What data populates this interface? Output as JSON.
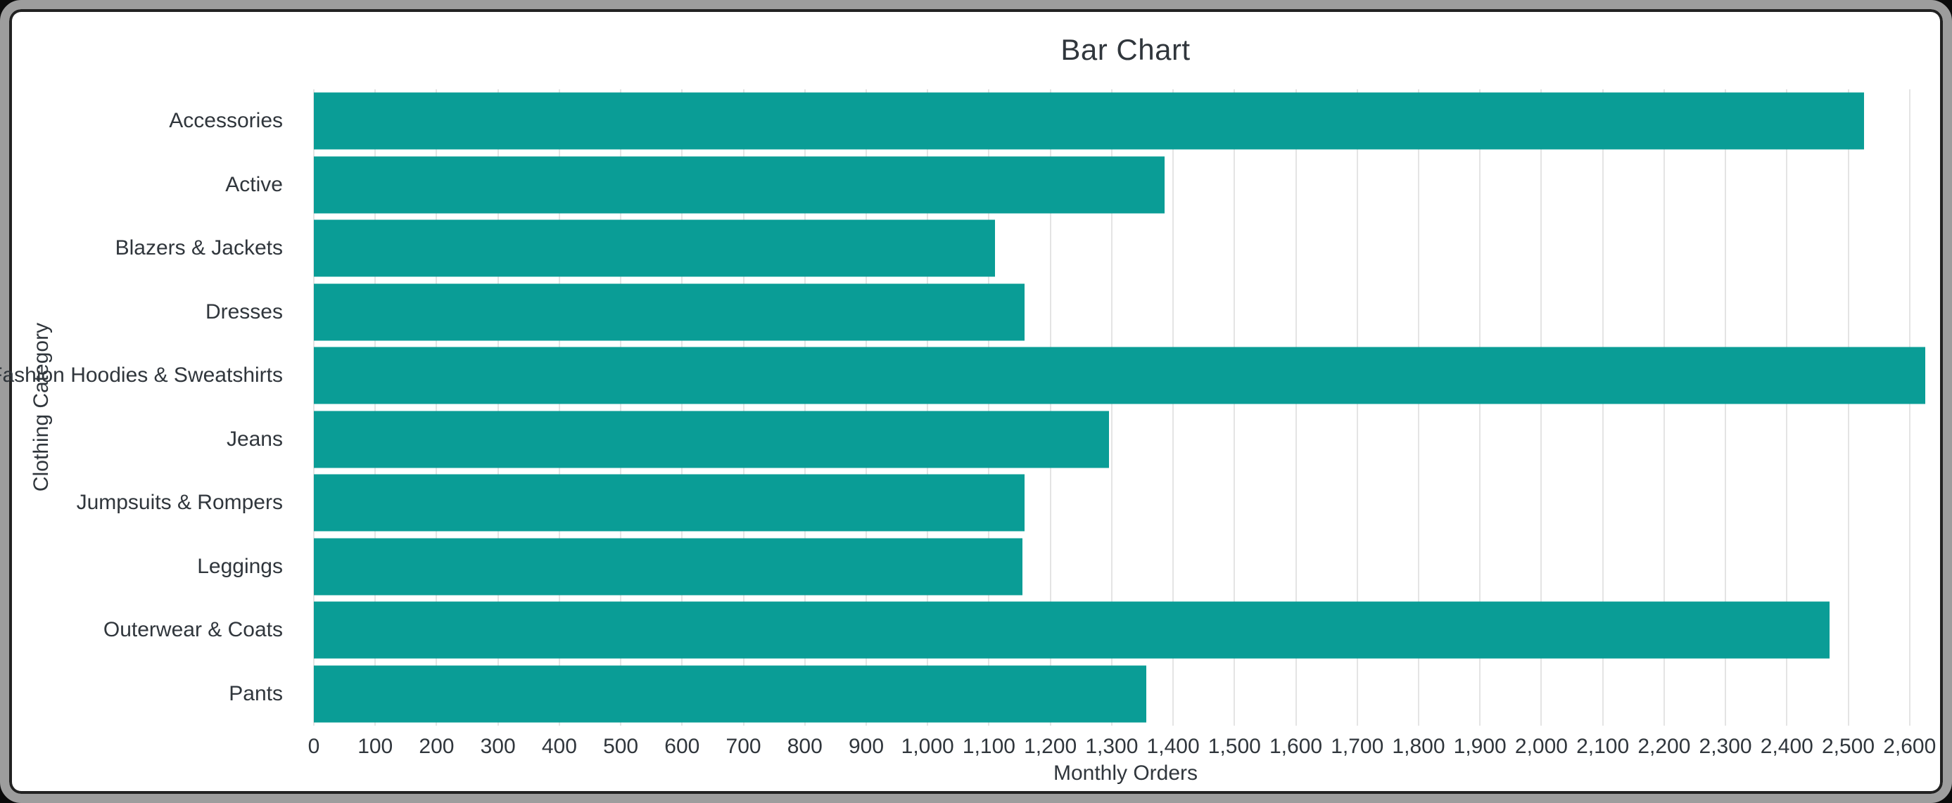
{
  "window": {
    "title": "Bar Chart"
  },
  "chart_data": {
    "type": "bar",
    "orientation": "horizontal",
    "title": "Bar Chart",
    "xlabel": "Monthly Orders",
    "ylabel": "Clothing Category",
    "categories": [
      "Accessories",
      "Active",
      "Blazers & Jackets",
      "Dresses",
      "Fashion Hoodies & Sweatshirts",
      "Jeans",
      "Jumpsuits & Rompers",
      "Leggings",
      "Outerwear & Coats",
      "Pants"
    ],
    "values": [
      2526,
      1386,
      1110,
      1158,
      2626,
      1296,
      1158,
      1155,
      2470,
      1356
    ],
    "xlim": [
      0,
      2645
    ],
    "xticks": {
      "values": [
        0,
        100,
        200,
        300,
        400,
        500,
        600,
        700,
        800,
        900,
        1000,
        1100,
        1200,
        1300,
        1400,
        1500,
        1600,
        1700,
        1800,
        1900,
        2000,
        2100,
        2200,
        2300,
        2400,
        2500,
        2600
      ],
      "labels": [
        "0",
        "100",
        "200",
        "300",
        "400",
        "500",
        "600",
        "700",
        "800",
        "900",
        "1,000",
        "1,100",
        "1,200",
        "1,300",
        "1,400",
        "1,500",
        "1,600",
        "1,700",
        "1,800",
        "1,900",
        "2,000",
        "2,100",
        "2,200",
        "2,300",
        "2,400",
        "2,500",
        "2,600"
      ]
    },
    "grid": "vertical",
    "legend": "none",
    "bar_color": "#0a9d96",
    "text_color": "#30363c",
    "grid_color": "#e4e4e4",
    "frame_color": "#9d9d9d"
  }
}
